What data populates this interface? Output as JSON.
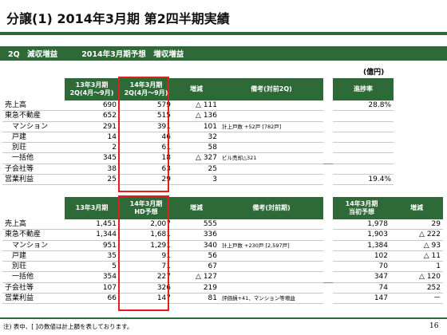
{
  "title": "分譲(1) 2014年3月期 第2四半期実績",
  "band": {
    "left": "2Q　減収増益",
    "right": "2014年3月期予想　増収増益"
  },
  "unit": "(億円)",
  "table1": {
    "headers": {
      "c1a": "13年3月期",
      "c1b": "2Q(4月～9月)",
      "c2a": "14年3月期",
      "c2b": "2Q(4月～9月)",
      "c3": "増減",
      "c4": "備考(対前2Q)",
      "c5": "進捗率"
    },
    "rows": [
      {
        "label": "売上高",
        "v1": "690",
        "v2": "579",
        "diff": "△ 111",
        "remark": "",
        "rate": "28.8%"
      },
      {
        "label": "東急不動産",
        "v1": "652",
        "v2": "515",
        "diff": "△ 136",
        "remark": "",
        "rate": ""
      },
      {
        "label": "マンション",
        "v1": "291",
        "v2": "391",
        "diff": "101",
        "remark": "計上戸数 +52戸 [782戸]",
        "rate": ""
      },
      {
        "label": "戸建",
        "v1": "14",
        "v2": "46",
        "diff": "32",
        "remark": "",
        "rate": ""
      },
      {
        "label": "別荘",
        "v1": "2",
        "v2": "61",
        "diff": "58",
        "remark": "",
        "rate": ""
      },
      {
        "label": "一括他",
        "v1": "345",
        "v2": "18",
        "diff": "△ 327",
        "remark": "ビル売却△321",
        "rate": ""
      },
      {
        "label": "子会社等",
        "v1": "38",
        "v2": "63",
        "diff": "25",
        "remark": "",
        "rate": ""
      },
      {
        "label": "営業利益",
        "v1": "25",
        "v2": "29",
        "diff": "3",
        "remark": "",
        "rate": "19.4%"
      }
    ]
  },
  "table2": {
    "headers": {
      "c1": "13年3月期",
      "c2a": "14年3月期",
      "c2b": "HD予想",
      "c3": "増減",
      "c4": "備考(対前期)",
      "c5a": "14年3月期",
      "c5b": "当初予想",
      "c6": "増減"
    },
    "rows": [
      {
        "label": "売上高",
        "v1": "1,451",
        "v2": "2,007",
        "diff": "555",
        "remark": "",
        "init": "1,978",
        "d2": "29"
      },
      {
        "label": "東急不動産",
        "v1": "1,344",
        "v2": "1,681",
        "diff": "336",
        "remark": "",
        "init": "1,903",
        "d2": "△ 222"
      },
      {
        "label": "マンション",
        "v1": "951",
        "v2": "1,291",
        "diff": "340",
        "remark": "計上戸数 +230戸 [2,597戸]",
        "init": "1,384",
        "d2": "△ 93"
      },
      {
        "label": "戸建",
        "v1": "35",
        "v2": "91",
        "diff": "56",
        "remark": "",
        "init": "102",
        "d2": "△ 11"
      },
      {
        "label": "別荘",
        "v1": "5",
        "v2": "71",
        "diff": "67",
        "remark": "",
        "init": "70",
        "d2": "1"
      },
      {
        "label": "一括他",
        "v1": "354",
        "v2": "227",
        "diff": "△ 127",
        "remark": "",
        "init": "347",
        "d2": "△ 120"
      },
      {
        "label": "子会社等",
        "v1": "107",
        "v2": "326",
        "diff": "219",
        "remark": "",
        "init": "74",
        "d2": "252"
      },
      {
        "label": "営業利益",
        "v1": "66",
        "v2": "147",
        "diff": "81",
        "remark": "評価損+41、マンション等増益",
        "init": "147",
        "d2": "－"
      }
    ]
  },
  "footnote": "注) 表中、[ ]の数値は計上額を表しております。",
  "page_number": "16"
}
